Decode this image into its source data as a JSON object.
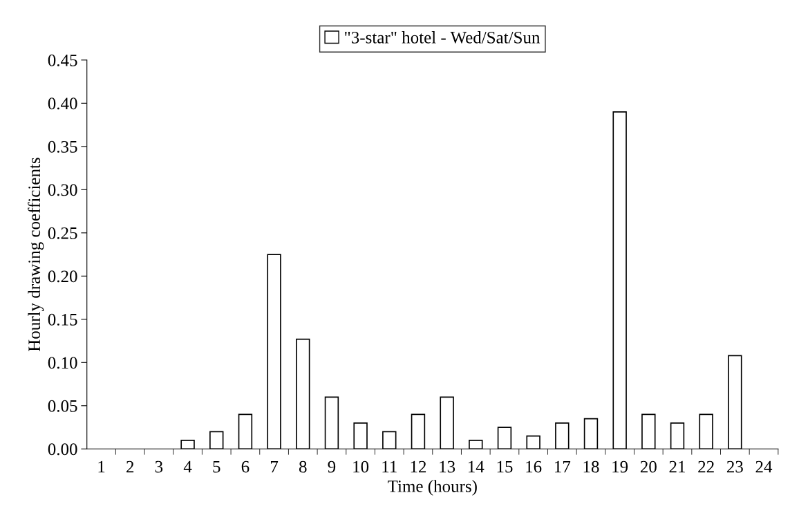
{
  "chart_data": {
    "type": "bar",
    "xlabel": "Time (hours)",
    "ylabel": "Hourly drawing coefficients",
    "categories": [
      "1",
      "2",
      "3",
      "4",
      "5",
      "6",
      "7",
      "8",
      "9",
      "10",
      "11",
      "12",
      "13",
      "14",
      "15",
      "16",
      "17",
      "18",
      "19",
      "20",
      "21",
      "22",
      "23",
      "24"
    ],
    "series": [
      {
        "name": "\"3-star\" hotel - Wed/Sat/Sun",
        "color": "#ffffff",
        "values": [
          null,
          null,
          null,
          0.01,
          0.02,
          0.04,
          0.225,
          0.127,
          0.06,
          0.03,
          0.02,
          0.04,
          0.06,
          0.01,
          0.025,
          0.015,
          0.03,
          0.035,
          0.39,
          0.04,
          0.03,
          0.04,
          0.108,
          null
        ]
      }
    ],
    "ylim": [
      0,
      0.45
    ],
    "yticks": [
      {
        "value": 0,
        "label": "0.00"
      },
      {
        "value": 0.05,
        "label": "0.05"
      },
      {
        "value": 0.1,
        "label": "0.10"
      },
      {
        "value": 0.15,
        "label": "0.15"
      },
      {
        "value": 0.2,
        "label": "0.20"
      },
      {
        "value": 0.25,
        "label": "0.25"
      },
      {
        "value": 0.3,
        "label": "0.30"
      },
      {
        "value": 0.35,
        "label": "0.35"
      },
      {
        "value": 0.4,
        "label": "0.40"
      },
      {
        "value": 0.45,
        "label": "0.45"
      }
    ],
    "grid": false,
    "legend": "top"
  }
}
